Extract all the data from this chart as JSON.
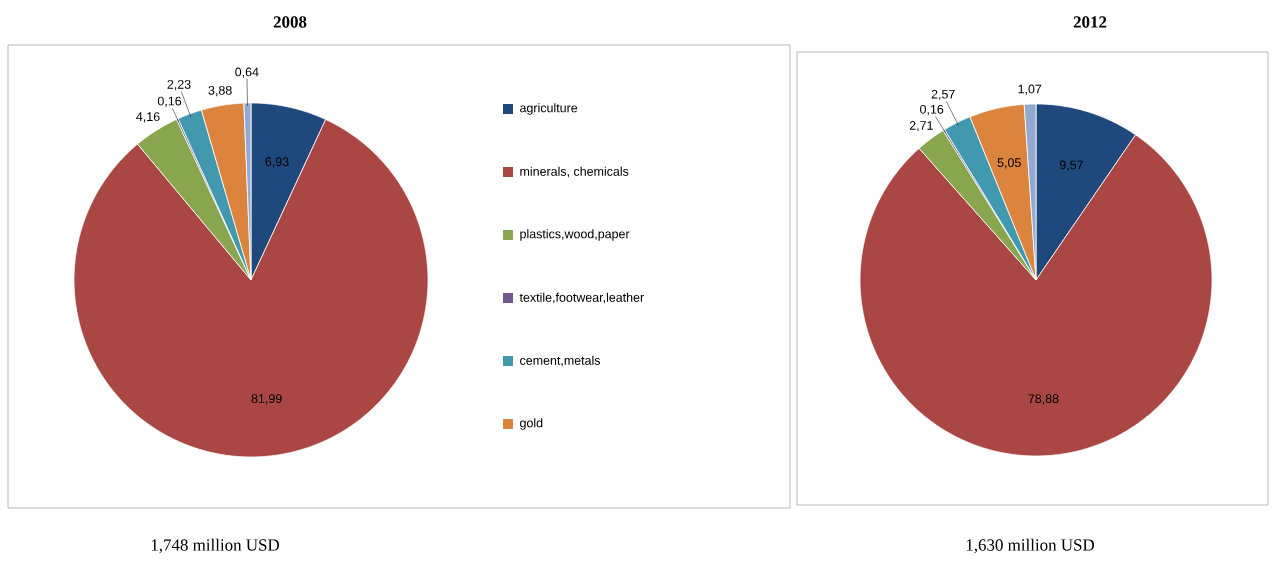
{
  "chart_data": [
    {
      "type": "pie",
      "title": "2008",
      "categories": [
        "agriculture",
        "minerals, chemicals",
        "plastics,wood,paper",
        "textile,footwear,leather",
        "cement,metals",
        "gold",
        null
      ],
      "values": [
        6.93,
        81.99,
        4.16,
        0.16,
        2.23,
        3.88,
        0.64
      ],
      "value_labels": [
        "6,93",
        "81,99",
        "4,16",
        "0,16",
        "2,23",
        "3,88",
        "0,64"
      ],
      "colors": [
        "#1f497d",
        "#aa4643",
        "#89a54e",
        "#71588f",
        "#4198af",
        "#db843d",
        "#93a9cf"
      ],
      "legend": "right",
      "annotations": [
        "1,748 million USD"
      ]
    },
    {
      "type": "pie",
      "title": "2012",
      "categories": [
        null,
        null,
        null,
        null,
        null,
        null,
        null
      ],
      "values": [
        9.57,
        78.88,
        2.71,
        0.16,
        2.57,
        5.05,
        1.07
      ],
      "value_labels": [
        "9,57",
        "78,88",
        "2,71",
        "0,16",
        "2,57",
        "5,05",
        "1,07"
      ],
      "colors": [
        "#1f497d",
        "#aa4643",
        "#89a54e",
        "#71588f",
        "#4198af",
        "#db843d",
        "#93a9cf"
      ],
      "annotations": [
        "1,630 million USD"
      ]
    }
  ]
}
